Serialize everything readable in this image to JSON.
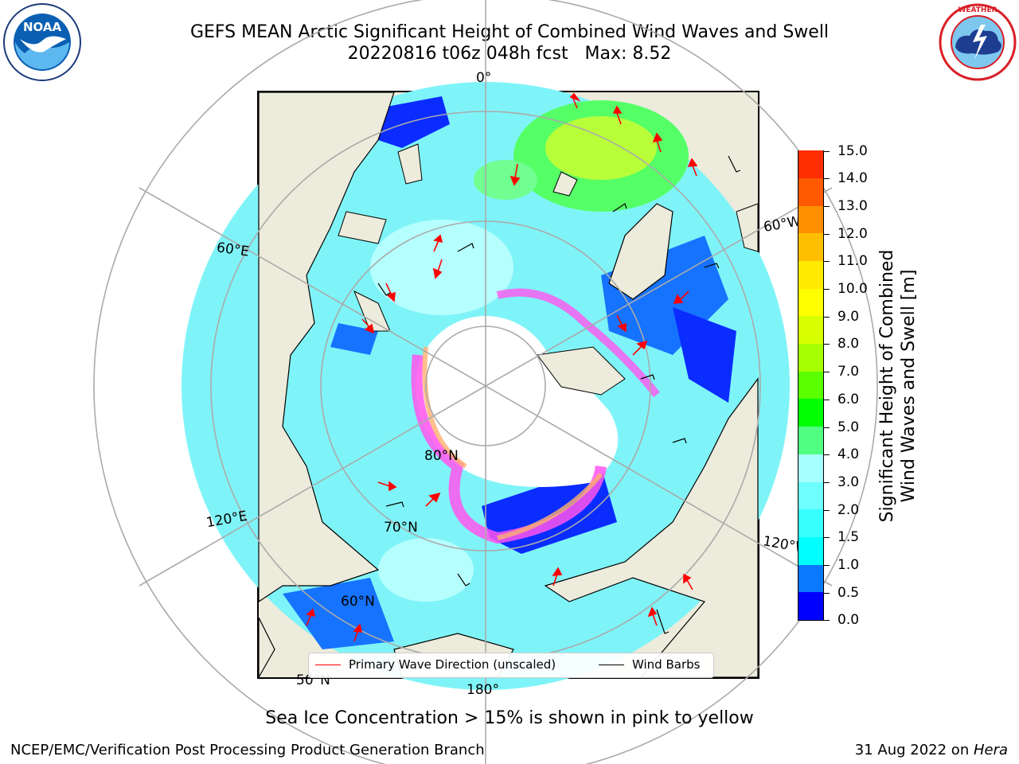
{
  "title": {
    "line1": "GEFS MEAN Arctic Significant Height of Combined Wind Waves and Swell",
    "line2": "20220816 t06z 048h fcst   Max: 8.52"
  },
  "map": {
    "longitude_labels": [
      "0°",
      "60°E",
      "60°W",
      "120°E",
      "120°W",
      "180°"
    ],
    "latitude_labels": [
      "80°N",
      "70°N",
      "60°N",
      "50°N"
    ]
  },
  "legend": {
    "primary_wave": "Primary Wave Direction (unscaled)",
    "wind_barbs": "Wind Barbs",
    "primary_wave_color": "#ff0000",
    "wind_barbs_color": "#000000"
  },
  "colorbar": {
    "label_line1": "Significant Height of Combined",
    "label_line2": "Wind Waves and Swell [m]",
    "ticks": [
      "0.0",
      "0.5",
      "1.0",
      "1.5",
      "2.0",
      "3.0",
      "4.0",
      "5.0",
      "6.0",
      "7.0",
      "8.0",
      "9.0",
      "10.0",
      "11.0",
      "12.0",
      "13.0",
      "14.0",
      "15.0"
    ],
    "colors": [
      "#0000ff",
      "#0a78ff",
      "#00ffff",
      "#38ffff",
      "#6effff",
      "#a6ffff",
      "#50ff82",
      "#00ff00",
      "#5aff00",
      "#a6ff00",
      "#d8ff00",
      "#ffff00",
      "#ffea00",
      "#ffbf00",
      "#ff8f00",
      "#ff5a00",
      "#ff2d00"
    ]
  },
  "caption": "Sea Ice Concentration > 15% is shown in pink to yellow",
  "footer": {
    "left": "NCEP/EMC/Verification Post Processing Product Generation Branch",
    "right_prefix": "31 Aug 2022 on ",
    "right_host": "Hera"
  },
  "logos": {
    "noaa_text": "NOAA",
    "noaa_ring_text": "NATIONAL OCEANIC AND ATMOSPHERIC ADMINISTRATION · U.S. DEPARTMENT OF COMMERCE",
    "nws_ring_text": "NATIONAL WEATHER SERVICE"
  }
}
